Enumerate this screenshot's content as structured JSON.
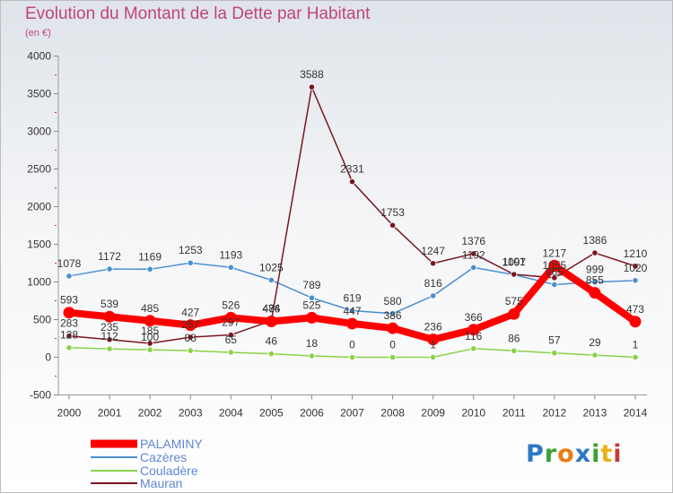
{
  "header": {
    "title": "Evolution du Montant de la Dette par Habitant",
    "subtitle": "(en €)"
  },
  "logo": {
    "text": "Proxiti",
    "colors": [
      "#2f78c8",
      "#3aa236",
      "#e87d14",
      "#2f78c8",
      "#3aa236",
      "#e8b114",
      "#c53a3a"
    ]
  },
  "chart_data": {
    "type": "line",
    "title": "Evolution du Montant de la Dette par Habitant",
    "ylabel": "(en €)",
    "xlabel": "",
    "ylim": [
      -500,
      4000
    ],
    "yticks": [
      -500,
      0,
      500,
      1000,
      1500,
      2000,
      2500,
      3000,
      3500,
      4000
    ],
    "x": [
      "2000",
      "2001",
      "2002",
      "2003",
      "2004",
      "2005",
      "2006",
      "2007",
      "2008",
      "2009",
      "2010",
      "2011",
      "2012",
      "2013",
      "2014"
    ],
    "grid": false,
    "legend": "bottom-left",
    "series": [
      {
        "name": "PALAMINY",
        "color": "#ff0000",
        "values": [
          593,
          539,
          485,
          427,
          526,
          476,
          525,
          447,
          386,
          236,
          366,
          575,
          1217,
          855,
          473
        ],
        "labels": [
          "593",
          "539",
          "485",
          "427",
          "526",
          "476",
          "525",
          "447",
          "386",
          "236",
          "366",
          "575",
          "1217",
          "855",
          "473"
        ]
      },
      {
        "name": "Cazères",
        "color": "#4a8fd0",
        "values": [
          1078,
          1172,
          1169,
          1253,
          1193,
          1025,
          789,
          619,
          580,
          816,
          1192,
          1097,
          965,
          999,
          1020
        ],
        "labels": [
          "1078",
          "1172",
          "1169",
          "1253",
          "1193",
          "1025",
          "789",
          "619",
          "580",
          "816",
          "1192",
          "1097",
          "965",
          "999",
          "1020"
        ]
      },
      {
        "name": "Couladère",
        "color": "#8ad148",
        "values": [
          128,
          112,
          100,
          88,
          65,
          46,
          18,
          0,
          0,
          1,
          116,
          86,
          57,
          29,
          1
        ],
        "labels": [
          "128",
          "112",
          "100",
          "88",
          "65",
          "46",
          "18",
          "0",
          "0",
          "1",
          "116",
          "86",
          "57",
          "29",
          "1"
        ]
      },
      {
        "name": "Mauran",
        "color": "#7a1520",
        "values": [
          283,
          235,
          185,
          267,
          297,
          484,
          3588,
          2331,
          1753,
          1247,
          1376,
          1101,
          1055,
          1386,
          1210
        ],
        "labels": [
          "283",
          "235",
          "185",
          "267",
          "297",
          "484",
          "3588",
          "2331",
          "1753",
          "1247",
          "1376",
          "1101",
          "1055",
          "1386",
          "1210"
        ]
      }
    ]
  }
}
